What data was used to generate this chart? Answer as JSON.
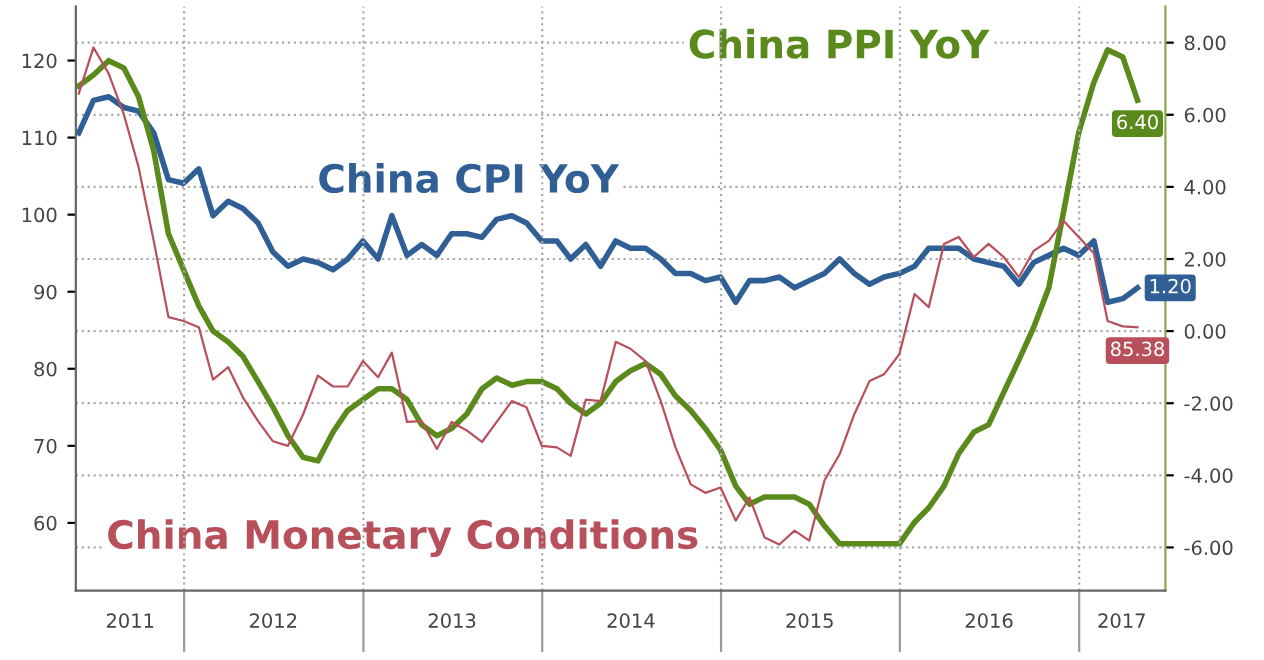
{
  "chart_data": {
    "type": "line",
    "x": [
      "2011-05-31",
      "2011-06-30",
      "2011-07-31",
      "2011-08-31",
      "2011-09-30",
      "2011-10-31",
      "2011-11-30",
      "2011-12-31",
      "2012-01-31",
      "2012-02-29",
      "2012-03-31",
      "2012-04-30",
      "2012-05-31",
      "2012-06-30",
      "2012-07-31",
      "2012-08-31",
      "2012-09-30",
      "2012-10-31",
      "2012-11-30",
      "2012-12-31",
      "2013-01-31",
      "2013-02-28",
      "2013-03-31",
      "2013-04-30",
      "2013-05-31",
      "2013-06-30",
      "2013-07-31",
      "2013-08-31",
      "2013-09-30",
      "2013-10-31",
      "2013-11-30",
      "2013-12-31",
      "2014-01-31",
      "2014-02-28",
      "2014-03-31",
      "2014-04-30",
      "2014-05-31",
      "2014-06-30",
      "2014-07-31",
      "2014-08-31",
      "2014-09-30",
      "2014-10-31",
      "2014-11-30",
      "2014-12-31",
      "2015-01-31",
      "2015-02-28",
      "2015-03-31",
      "2015-04-30",
      "2015-05-31",
      "2015-06-30",
      "2015-07-31",
      "2015-08-31",
      "2015-09-30",
      "2015-10-31",
      "2015-11-30",
      "2015-12-31",
      "2016-01-31",
      "2016-02-29",
      "2016-03-31",
      "2016-04-30",
      "2016-05-31",
      "2016-06-30",
      "2016-07-31",
      "2016-08-31",
      "2016-09-30",
      "2016-10-31",
      "2016-11-30",
      "2016-12-31",
      "2017-01-31",
      "2017-02-28",
      "2017-03-31",
      "2017-04-30"
    ],
    "series": [
      {
        "name": "China Monetary Conditions",
        "color": "#b8505c",
        "axis": "y",
        "values": [
          115.7,
          121.7,
          118.3,
          113,
          106.2,
          96.6,
          86.7,
          86.2,
          85.4,
          78.6,
          80.2,
          76.3,
          73.2,
          70.6,
          70.0,
          74.1,
          79.1,
          77.7,
          77.7,
          81.0,
          78.9,
          82.1,
          73.1,
          73.2,
          69.6,
          73.1,
          72.0,
          70.5,
          73.1,
          75.8,
          75.0,
          70.0,
          69.8,
          68.7,
          76.0,
          75.8,
          83.5,
          82.6,
          81.0,
          75.8,
          69.8,
          65.0,
          63.9,
          64.6,
          60.3,
          63.3,
          58.1,
          57.2,
          59.0,
          57.7,
          65.5,
          68.9,
          74.1,
          78.4,
          79.3,
          81.9,
          89.7,
          88.0,
          96.2,
          97.1,
          94.5,
          96.2,
          94.5,
          91.9,
          95.3,
          96.6,
          99.2,
          97.1,
          95.0,
          86.2,
          85.5,
          85.38
        ],
        "value_labels": [
          null,
          null,
          null,
          null,
          null,
          null,
          null,
          null,
          null,
          null,
          null,
          null,
          null,
          null,
          null,
          null,
          null,
          null,
          null,
          null,
          null,
          null,
          null,
          null,
          null,
          null,
          null,
          null,
          null,
          null,
          null,
          null,
          null,
          null,
          null,
          null,
          null,
          null,
          null,
          null,
          null,
          null,
          null,
          null,
          null,
          null,
          null,
          null,
          null,
          null,
          null,
          null,
          null,
          null,
          null,
          null,
          null,
          null,
          null,
          null,
          null,
          null,
          null,
          null,
          null,
          null,
          null,
          null,
          null,
          null,
          null,
          "85.38"
        ]
      },
      {
        "name": "China CPI YoY",
        "color": "#2f5f95",
        "axis": "y2",
        "values": [
          5.5,
          6.4,
          6.5,
          6.2,
          6.1,
          5.5,
          4.2,
          4.1,
          4.5,
          3.2,
          3.6,
          3.4,
          3.0,
          2.2,
          1.8,
          2.0,
          1.9,
          1.7,
          2.0,
          2.5,
          2.0,
          3.2,
          2.1,
          2.4,
          2.1,
          2.7,
          2.7,
          2.6,
          3.1,
          3.2,
          3.0,
          2.5,
          2.5,
          2.0,
          2.4,
          1.8,
          2.5,
          2.3,
          2.3,
          2.0,
          1.6,
          1.6,
          1.4,
          1.5,
          0.8,
          1.4,
          1.4,
          1.5,
          1.2,
          1.4,
          1.6,
          2.0,
          1.6,
          1.3,
          1.5,
          1.6,
          1.8,
          2.3,
          2.3,
          2.3,
          2.0,
          1.9,
          1.8,
          1.3,
          1.9,
          2.1,
          2.3,
          2.1,
          2.5,
          0.8,
          0.9,
          1.2
        ],
        "value_labels": [
          null,
          null,
          null,
          null,
          null,
          null,
          null,
          null,
          null,
          null,
          null,
          null,
          null,
          null,
          null,
          null,
          null,
          null,
          null,
          null,
          null,
          null,
          null,
          null,
          null,
          null,
          null,
          null,
          null,
          null,
          null,
          null,
          null,
          null,
          null,
          null,
          null,
          null,
          null,
          null,
          null,
          null,
          null,
          null,
          null,
          null,
          null,
          null,
          null,
          null,
          null,
          null,
          null,
          null,
          null,
          null,
          null,
          null,
          null,
          null,
          null,
          null,
          null,
          null,
          null,
          null,
          null,
          null,
          null,
          null,
          null,
          "1.20"
        ]
      },
      {
        "name": "China PPI YoY",
        "color": "#5b8a1c",
        "axis": "y2",
        "values": [
          6.8,
          7.1,
          7.5,
          7.3,
          6.5,
          5.0,
          2.7,
          1.7,
          0.7,
          0.0,
          -0.3,
          -0.7,
          -1.4,
          -2.1,
          -2.9,
          -3.5,
          -3.6,
          -2.8,
          -2.2,
          -1.9,
          -1.6,
          -1.6,
          -1.9,
          -2.6,
          -2.9,
          -2.7,
          -2.3,
          -1.6,
          -1.3,
          -1.5,
          -1.4,
          -1.4,
          -1.6,
          -2.0,
          -2.3,
          -2.0,
          -1.4,
          -1.1,
          -0.9,
          -1.2,
          -1.8,
          -2.2,
          -2.7,
          -3.3,
          -4.3,
          -4.8,
          -4.6,
          -4.6,
          -4.6,
          -4.8,
          -5.4,
          -5.9,
          -5.9,
          -5.9,
          -5.9,
          -5.9,
          -5.3,
          -4.9,
          -4.3,
          -3.4,
          -2.8,
          -2.6,
          -1.7,
          -0.8,
          0.1,
          1.2,
          3.3,
          5.5,
          6.9,
          7.8,
          7.6,
          6.4
        ],
        "value_labels": [
          null,
          null,
          null,
          null,
          null,
          null,
          null,
          null,
          null,
          null,
          null,
          null,
          null,
          null,
          null,
          null,
          null,
          null,
          null,
          null,
          null,
          null,
          null,
          null,
          null,
          null,
          null,
          null,
          null,
          null,
          null,
          null,
          null,
          null,
          null,
          null,
          null,
          null,
          null,
          null,
          null,
          null,
          null,
          null,
          null,
          null,
          null,
          null,
          null,
          null,
          null,
          null,
          null,
          null,
          null,
          null,
          null,
          null,
          null,
          null,
          null,
          null,
          null,
          null,
          null,
          null,
          null,
          null,
          null,
          null,
          null,
          "6.40"
        ]
      }
    ],
    "xlim": [
      "2011-05-25",
      "2017-06-26"
    ],
    "xticks": [
      {
        "value": "2012-01-01",
        "label": null
      },
      {
        "value": "2013-01-01",
        "label": null
      },
      {
        "value": "2014-01-01",
        "label": null
      },
      {
        "value": "2015-01-01",
        "label": null
      },
      {
        "value": "2016-01-01",
        "label": null
      },
      {
        "value": "2017-01-01",
        "label": null
      },
      {
        "value": "2011-09-13",
        "label": "2011"
      },
      {
        "value": "2012-07-01",
        "label": "2012"
      },
      {
        "value": "2013-07-01",
        "label": "2013"
      },
      {
        "value": "2014-07-01",
        "label": "2014"
      },
      {
        "value": "2015-07-01",
        "label": "2015"
      },
      {
        "value": "2016-07-01",
        "label": "2016"
      },
      {
        "value": "2017-03-29",
        "label": "2017"
      }
    ],
    "ylim": [
      51.2,
      127
    ],
    "yticks": [
      60,
      70,
      80,
      90,
      100,
      110,
      120
    ],
    "y2lim": [
      -7.2,
      9.0
    ],
    "y2ticks": [
      {
        "value": -6,
        "label": "-6.00"
      },
      {
        "value": -4,
        "label": "-4.00"
      },
      {
        "value": -2,
        "label": "-2.00"
      },
      {
        "value": 0,
        "label": "0.00"
      },
      {
        "value": 2,
        "label": "2.00"
      },
      {
        "value": 4,
        "label": "4.00"
      },
      {
        "value": 6,
        "label": "6.00"
      },
      {
        "value": 8,
        "label": "8.00"
      }
    ],
    "grid": true,
    "legend": false,
    "marker": "none",
    "line_style": "solid"
  }
}
